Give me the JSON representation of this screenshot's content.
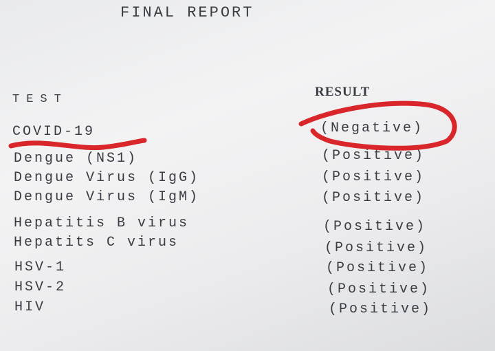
{
  "title": "FINAL REPORT",
  "headers": {
    "test": "TEST",
    "result": "RESULT"
  },
  "rows": [
    {
      "test": "COVID-19",
      "result": "(Negative)"
    },
    {
      "test": "Dengue (NS1)",
      "result": "(Positive)"
    },
    {
      "test": "Dengue Virus (IgG)",
      "result": "(Positive)"
    },
    {
      "test": "Dengue Virus (IgM)",
      "result": "(Positive)"
    },
    {
      "test": "Hepatitis B virus",
      "result": "(Positive)"
    },
    {
      "test": "Hepatits C virus",
      "result": "(Positive)"
    },
    {
      "test": "HSV-1",
      "result": "(Positive)"
    },
    {
      "test": "HSV-2",
      "result": "(Positive)"
    },
    {
      "test": "HIV",
      "result": "(Positive)"
    }
  ],
  "annotation_color": "#d8262b"
}
